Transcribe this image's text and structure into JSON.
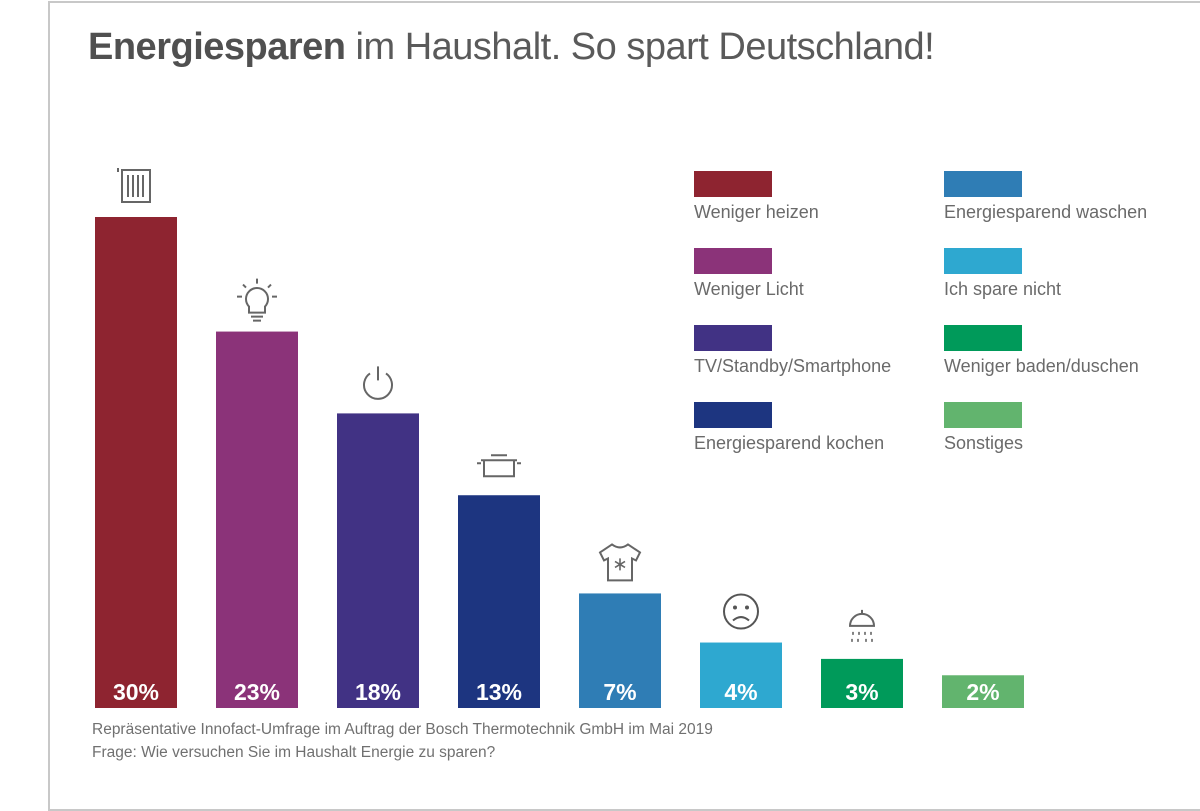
{
  "chart_data": {
    "type": "bar",
    "title_bold": "Energiesparen",
    "title_rest": " im Haushalt. So spart Deutschland!",
    "categories": [
      "Weniger heizen",
      "Weniger Licht",
      "TV/Standby/Smartphone",
      "Energiesparend kochen",
      "Energiesparend waschen",
      "Ich spare nicht",
      "Weniger baden/duschen",
      "Sonstiges"
    ],
    "values": [
      30,
      23,
      18,
      13,
      7,
      4,
      3,
      2
    ],
    "labels": [
      "30%",
      "23%",
      "18%",
      "13%",
      "7%",
      "4%",
      "3%",
      "2%"
    ],
    "colors": [
      "#8e2430",
      "#8b3379",
      "#413284",
      "#1d3580",
      "#2f7db5",
      "#2ea8d0",
      "#009a5a",
      "#62b46e"
    ],
    "icons": [
      "radiator-icon",
      "lightbulb-icon",
      "power-icon",
      "cooking-pot-icon",
      "tshirt-icon",
      "sad-face-icon",
      "shower-icon",
      ""
    ],
    "ylim": [
      0,
      30
    ],
    "grid": false,
    "legend": "top-right",
    "unit": "%"
  },
  "footnote": {
    "line1": "Repräsentative Innofact-Umfrage im Auftrag der Bosch Thermotechnik GmbH im Mai 2019",
    "line2": "Frage: Wie versuchen Sie im Haushalt Energie zu sparen?"
  }
}
